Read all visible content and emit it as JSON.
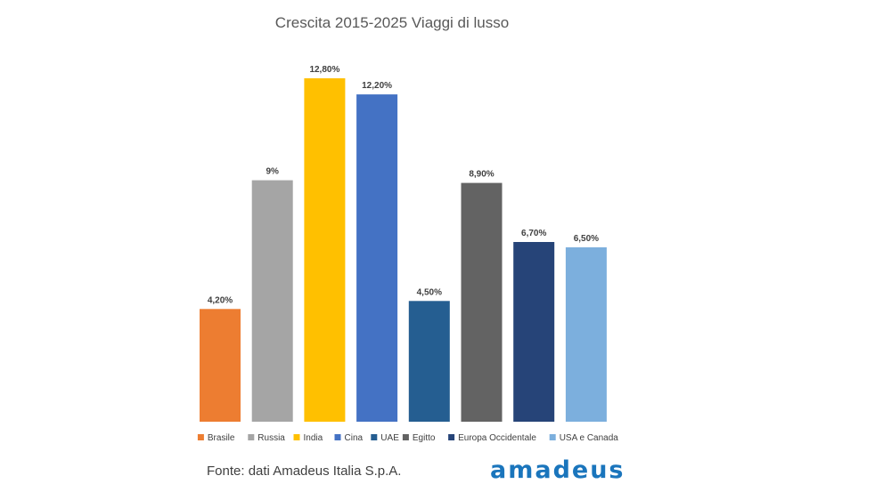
{
  "chart_data": {
    "type": "bar",
    "title": "Crescita 2015-2025 Viaggi di lusso",
    "categories": [
      "Brasile",
      "Russia",
      "India",
      "Cina",
      "UAE",
      "Egitto",
      "Europa Occidentale",
      "USA e Canada"
    ],
    "values": [
      4.2,
      9.0,
      12.8,
      12.2,
      4.5,
      8.9,
      6.7,
      6.5
    ],
    "value_labels": [
      "4,20%",
      "9%",
      "12,80%",
      "12,20%",
      "4,50%",
      "8,90%",
      "6,70%",
      "6,50%"
    ],
    "colors": [
      "#ed7d31",
      "#a5a5a5",
      "#ffc000",
      "#4472c4",
      "#255e91",
      "#636363",
      "#264478",
      "#7cafdd"
    ],
    "ylim": [
      0,
      12.8
    ],
    "grid": false,
    "legend_position": "bottom",
    "xlabel": "",
    "ylabel": ""
  },
  "footer": {
    "source": "Fonte: dati Amadeus Italia S.p.A.",
    "brand": "amadeus"
  }
}
